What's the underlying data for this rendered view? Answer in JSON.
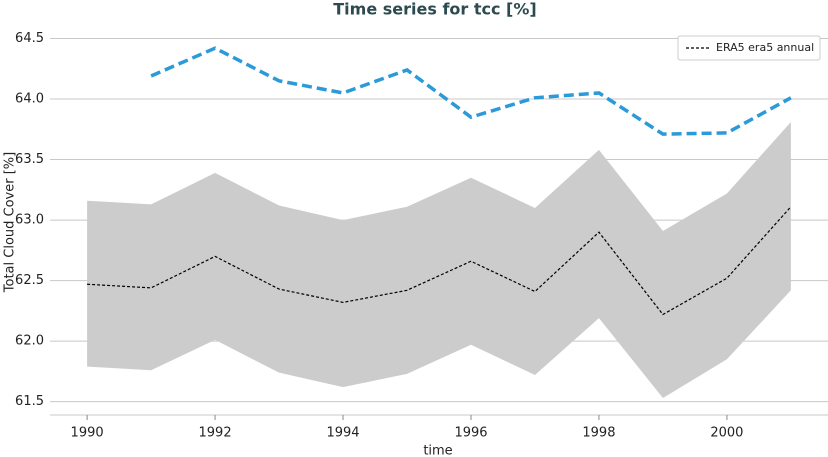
{
  "chart_data": {
    "type": "line",
    "title": "Time series for tcc [%]",
    "xlabel": "time",
    "ylabel": "Total Cloud Cover [%]",
    "x": [
      1990,
      1991,
      1992,
      1993,
      1994,
      1995,
      1996,
      1997,
      1998,
      1999,
      2000,
      2001
    ],
    "series": [
      {
        "name": "ERA5 era5 annual",
        "color": "#000000",
        "dash": "short",
        "values": [
          62.47,
          62.44,
          62.7,
          62.43,
          62.32,
          62.42,
          62.66,
          62.41,
          62.9,
          62.22,
          62.52,
          63.11
        ]
      },
      {
        "color": "#2a9ad8",
        "dash": "long",
        "values": [
          null,
          64.19,
          64.42,
          64.15,
          64.05,
          64.24,
          63.85,
          64.01,
          64.05,
          63.71,
          63.72,
          64.01
        ]
      }
    ],
    "band": {
      "color": "#cccccc",
      "upper": [
        63.16,
        63.13,
        63.39,
        63.12,
        63.0,
        63.11,
        63.35,
        63.1,
        63.58,
        62.91,
        63.22,
        63.81
      ],
      "lower": [
        61.79,
        61.76,
        62.01,
        61.74,
        61.62,
        61.73,
        61.97,
        61.72,
        62.19,
        61.53,
        61.85,
        62.42
      ]
    },
    "xlim": [
      1989.42,
      2001.58
    ],
    "xticks": [
      1990,
      1992,
      1994,
      1996,
      1998,
      2000
    ],
    "ylim": [
      61.39,
      64.57
    ],
    "yticks": [
      61.5,
      {
        "value": 62,
        "label": "62.0"
      },
      62.5,
      {
        "value": 63,
        "label": "63.0"
      },
      63.5,
      {
        "value": 64,
        "label": "64.0"
      },
      64.5
    ],
    "grid": true,
    "legend": "upper right"
  }
}
